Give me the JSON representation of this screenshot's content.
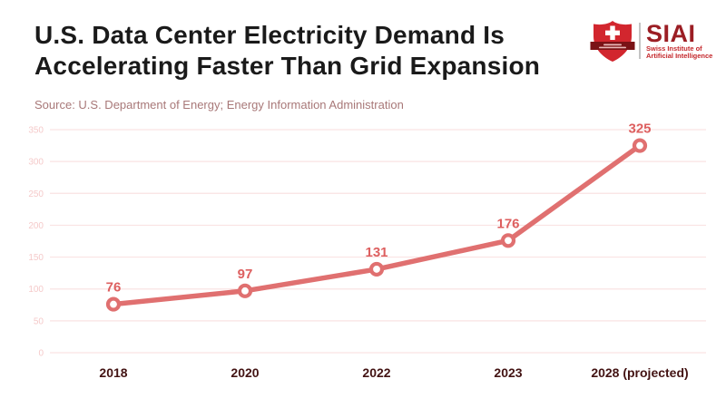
{
  "header": {
    "title_line1": "U.S. Data Center Electricity Demand Is",
    "title_line2": "Accelerating Faster Than Grid Expansion",
    "source": "Source: U.S. Department of Energy; Energy Information Administration"
  },
  "logo": {
    "acronym": "SIAI",
    "name_line1": "Swiss Institute of",
    "name_line2": "Artificial Intelligence",
    "colors": {
      "shield_red": "#d2262e",
      "ribbon_maroon": "#7a1216",
      "acronym_dark_red": "#9b1e24",
      "name_red": "#c4272b"
    }
  },
  "chart_data": {
    "type": "line",
    "title": "U.S. Data Center Electricity Demand Is Accelerating Faster Than Grid Expansion",
    "categories": [
      "2018",
      "2020",
      "2022",
      "2023",
      "2028 (projected)"
    ],
    "values": [
      76,
      97,
      131,
      176,
      325
    ],
    "data_labels": [
      "76",
      "97",
      "131",
      "176",
      "325"
    ],
    "xlabel": "",
    "ylabel": "",
    "ylim": [
      0,
      350
    ],
    "yticks": [
      0,
      50,
      100,
      150,
      200,
      250,
      300,
      350
    ],
    "grid": true,
    "legend": "none",
    "colors": {
      "line": "#e07070",
      "marker_fill": "#ffffff",
      "marker_stroke": "#e07070",
      "data_label": "#dd5f5f",
      "gridline": "#fae3e3",
      "ytick_label": "#f5caca",
      "xtick_label": "#431313"
    }
  }
}
